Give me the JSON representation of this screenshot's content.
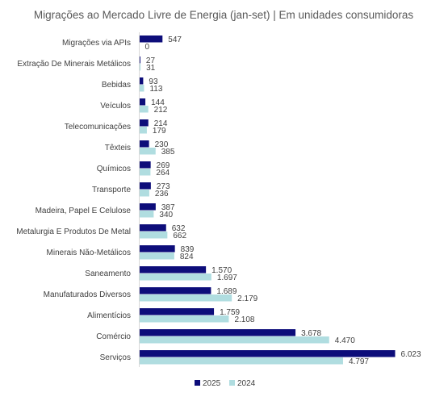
{
  "chart_data": {
    "type": "bar",
    "orientation": "horizontal",
    "title": "Migrações ao Mercado Livre de Energia (jan-set) | Em unidades consumidoras",
    "xlabel": "",
    "ylabel": "",
    "xlim": [
      0,
      6200
    ],
    "grid": false,
    "legend_position": "bottom",
    "categories": [
      "Migrações via APIs",
      "Extração De Minerais Metálicos",
      "Bebidas",
      "Veículos",
      "Telecomunicações",
      "Têxteis",
      "Químicos",
      "Transporte",
      "Madeira, Papel E Celulose",
      "Metalurgia E Produtos De Metal",
      "Minerais Não-Metálicos",
      "Saneamento",
      "Manufaturados Diversos",
      "Alimentícios",
      "Comércio",
      "Serviços"
    ],
    "series": [
      {
        "name": "2025",
        "color": "#0d0d7a",
        "values": [
          547,
          27,
          93,
          144,
          214,
          230,
          269,
          273,
          387,
          632,
          839,
          1570,
          1689,
          1759,
          3678,
          6023
        ],
        "labels": [
          "547",
          "27",
          "93",
          "144",
          "214",
          "230",
          "269",
          "273",
          "387",
          "632",
          "839",
          "1.570",
          "1.689",
          "1.759",
          "3.678",
          "6.023"
        ]
      },
      {
        "name": "2024",
        "color": "#b0dde0",
        "values": [
          0,
          31,
          113,
          212,
          179,
          385,
          264,
          236,
          340,
          662,
          824,
          1697,
          2179,
          2108,
          4470,
          4797
        ],
        "labels": [
          "0",
          "31",
          "113",
          "212",
          "179",
          "385",
          "264",
          "236",
          "340",
          "662",
          "824",
          "1.697",
          "2.179",
          "2.108",
          "4.470",
          "4.797"
        ]
      }
    ]
  }
}
